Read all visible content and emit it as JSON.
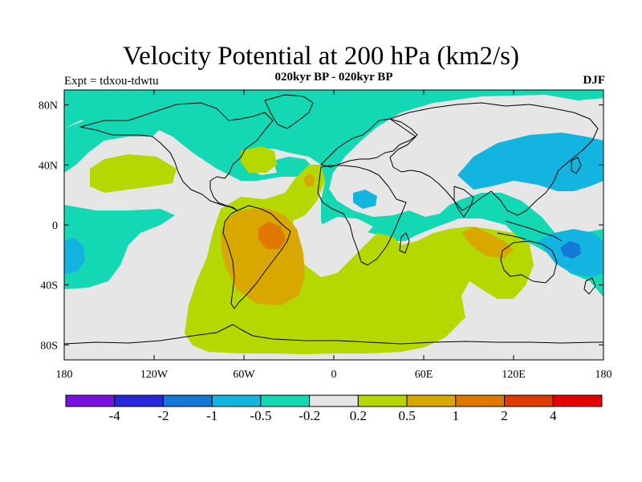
{
  "header": {
    "title": "Velocity Potential at 200 hPa (km2/s)",
    "expt": "Expt = tdxou-tdwtu",
    "subtitle": "020kyr BP - 020kyr BP",
    "season": "DJF"
  },
  "axes": {
    "x_ticks": [
      {
        "lon": -180,
        "label": "180"
      },
      {
        "lon": -120,
        "label": "120W"
      },
      {
        "lon": -60,
        "label": "60W"
      },
      {
        "lon": 0,
        "label": "0"
      },
      {
        "lon": 60,
        "label": "60E"
      },
      {
        "lon": 120,
        "label": "120E"
      },
      {
        "lon": 180,
        "label": "180"
      }
    ],
    "y_ticks": [
      {
        "lat": 80,
        "label": "80N"
      },
      {
        "lat": 40,
        "label": "40N"
      },
      {
        "lat": 0,
        "label": "0"
      },
      {
        "lat": -40,
        "label": "40S"
      },
      {
        "lat": -80,
        "label": "80S"
      }
    ],
    "lon_range": [
      -180,
      180
    ],
    "lat_range": [
      -90,
      90
    ]
  },
  "colorbar": {
    "colors": [
      "#7a10e0",
      "#2828d8",
      "#1478d8",
      "#14b4e0",
      "#14d8b4",
      "#e6e6e6",
      "#b4d800",
      "#d8a800",
      "#e07800",
      "#e03c00",
      "#e60000"
    ],
    "labels": [
      "-4",
      "-2",
      "-1",
      "-0.5",
      "-0.2",
      "0.2",
      "0.5",
      "1",
      "2",
      "4"
    ]
  },
  "colors": {
    "background_field": "#e6e6e6",
    "coast": "#000000"
  }
}
